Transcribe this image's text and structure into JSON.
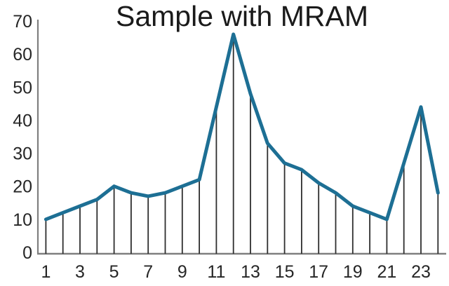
{
  "chart_data": {
    "type": "line",
    "title": "Sample with MRAM",
    "x": [
      1,
      2,
      3,
      4,
      5,
      6,
      7,
      8,
      9,
      10,
      11,
      12,
      13,
      14,
      15,
      16,
      17,
      18,
      19,
      20,
      21,
      22,
      23,
      24
    ],
    "values": [
      10,
      12,
      14,
      16,
      20,
      18,
      17,
      18,
      20,
      22,
      44,
      66,
      48,
      33,
      27,
      25,
      21,
      18,
      14,
      12,
      10,
      27,
      44,
      18
    ],
    "x_tick_labels": [
      "1",
      "3",
      "5",
      "7",
      "9",
      "11",
      "13",
      "15",
      "17",
      "19",
      "21",
      "23"
    ],
    "x_tick_values": [
      1,
      3,
      5,
      7,
      9,
      11,
      13,
      15,
      17,
      19,
      21,
      23
    ],
    "y_tick_labels": [
      "0",
      "10",
      "20",
      "30",
      "40",
      "50",
      "60",
      "70"
    ],
    "y_tick_values": [
      0,
      10,
      20,
      30,
      40,
      50,
      60,
      70
    ],
    "ylim": [
      0,
      70
    ],
    "xlabel": "",
    "ylabel": "",
    "legend": "none",
    "grid": false,
    "drop_lines": true,
    "colors": {
      "line": "#1d6f94",
      "drop_line": "#2e2e2e",
      "axis": "#7f7f7f",
      "tick_label": "#262626",
      "title": "#1a1a1a"
    }
  }
}
